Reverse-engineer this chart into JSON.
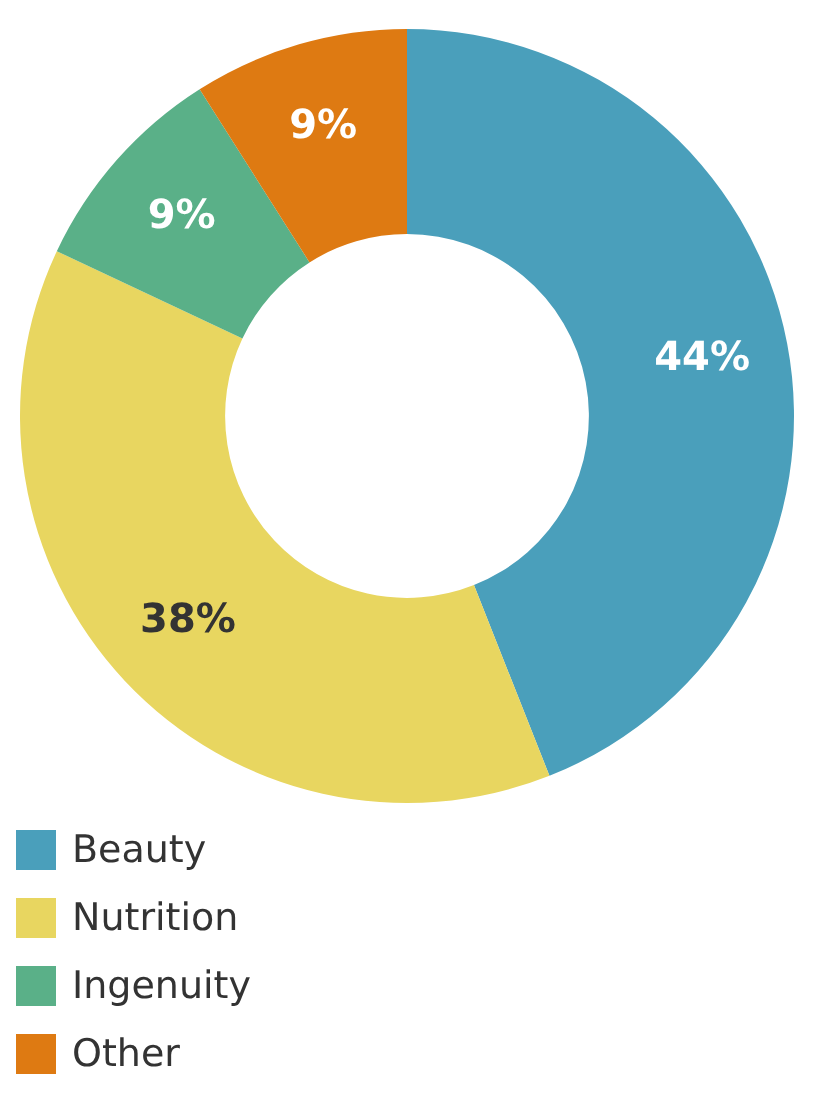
{
  "chart_data": {
    "type": "donut",
    "categories": [
      "Beauty",
      "Nutrition",
      "Ingenuity",
      "Other"
    ],
    "values": [
      44,
      38,
      9,
      9
    ],
    "colors": [
      "#4a9fbb",
      "#e8d660",
      "#5ab088",
      "#de7a12"
    ],
    "value_labels": [
      "44%",
      "38%",
      "9%",
      "9%"
    ],
    "legend": "bottom left"
  }
}
